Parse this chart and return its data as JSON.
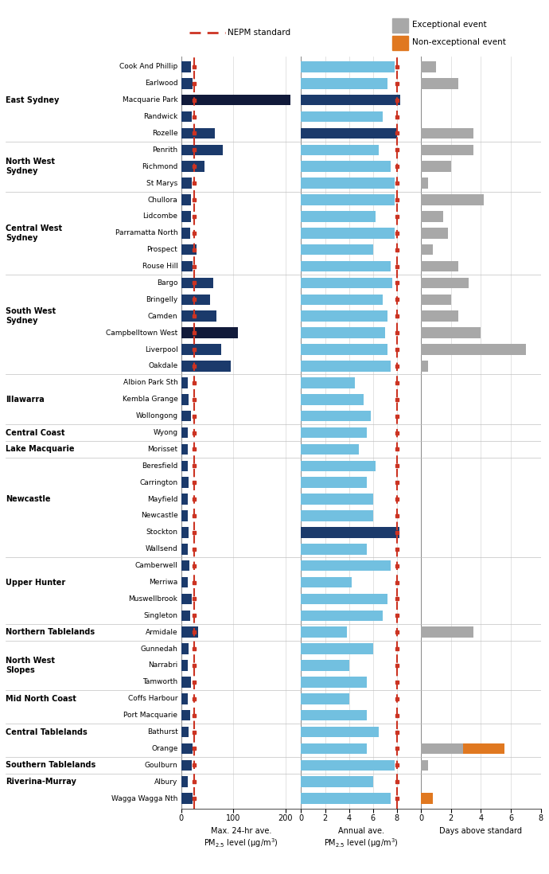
{
  "stations": [
    "Cook And Phillip",
    "Earlwood",
    "Macquarie Park",
    "Randwick",
    "Rozelle",
    "Penrith",
    "Richmond",
    "St Marys",
    "Chullora",
    "Lidcombe",
    "Parramatta North",
    "Prospect",
    "Rouse Hill",
    "Bargo",
    "Bringelly",
    "Camden",
    "Campbelltown West",
    "Liverpool",
    "Oakdale",
    "Albion Park Sth",
    "Kembla Grange",
    "Wollongong",
    "Wyong",
    "Morisset",
    "Beresfield",
    "Carrington",
    "Mayfield",
    "Newcastle",
    "Stockton",
    "Wallsend",
    "Camberwell",
    "Merriwa",
    "Muswellbrook",
    "Singleton",
    "Armidale",
    "Gunnedah",
    "Narrabri",
    "Tamworth",
    "Coffs Harbour",
    "Port Macquarie",
    "Bathurst",
    "Orange",
    "Goulburn",
    "Albury",
    "Wagga Wagga Nth"
  ],
  "region_separators": [
    4,
    7,
    12,
    18,
    21,
    22,
    23,
    29,
    33,
    34,
    37,
    39,
    41,
    42
  ],
  "regions": [
    {
      "name": "East Sydney",
      "label_row": 2
    },
    {
      "name": "North West\nSydney",
      "label_row": 6
    },
    {
      "name": "Central West\nSydney",
      "label_row": 10
    },
    {
      "name": "South West\nSydney",
      "label_row": 15
    },
    {
      "name": "Illawarra",
      "label_row": 20
    },
    {
      "name": "Central Coast",
      "label_row": 22
    },
    {
      "name": "Lake Macquarie",
      "label_row": 23
    },
    {
      "name": "Newcastle",
      "label_row": 26
    },
    {
      "name": "Upper Hunter",
      "label_row": 31
    },
    {
      "name": "Northern Tablelands",
      "label_row": 34
    },
    {
      "name": "North West\nSlopes",
      "label_row": 36
    },
    {
      "name": "Mid North Coast",
      "label_row": 38
    },
    {
      "name": "Central Tablelands",
      "label_row": 40
    },
    {
      "name": "Southern Tablelands",
      "label_row": 42
    },
    {
      "name": "Riverina-Murray",
      "label_row": 43
    }
  ],
  "max_24hr": [
    18,
    22,
    210,
    20,
    65,
    80,
    45,
    20,
    18,
    18,
    17,
    30,
    22,
    62,
    55,
    68,
    108,
    76,
    95,
    12,
    14,
    18,
    12,
    13,
    12,
    14,
    12,
    13,
    14,
    13,
    15,
    12,
    20,
    17,
    32,
    14,
    13,
    18,
    12,
    17,
    14,
    22,
    20,
    12,
    22
  ],
  "max_24hr_exceed": [
    false,
    false,
    true,
    false,
    false,
    false,
    false,
    false,
    false,
    false,
    false,
    false,
    false,
    false,
    false,
    false,
    true,
    false,
    false,
    false,
    false,
    false,
    false,
    false,
    false,
    false,
    false,
    false,
    false,
    false,
    false,
    false,
    false,
    false,
    false,
    false,
    false,
    false,
    false,
    false,
    false,
    false,
    false,
    false,
    false
  ],
  "annual_avg": [
    7.8,
    7.2,
    8.3,
    6.8,
    8.0,
    6.5,
    7.5,
    7.8,
    7.8,
    6.2,
    7.8,
    6.0,
    7.5,
    7.6,
    6.8,
    7.2,
    7.0,
    7.2,
    7.5,
    4.5,
    5.2,
    5.8,
    5.5,
    4.8,
    6.2,
    5.5,
    6.0,
    6.0,
    8.2,
    5.5,
    7.5,
    4.2,
    7.2,
    6.8,
    3.8,
    6.0,
    4.0,
    5.5,
    4.0,
    5.5,
    6.5,
    5.5,
    7.8,
    6.0,
    7.5
  ],
  "annual_exceed": [
    false,
    false,
    true,
    false,
    true,
    false,
    false,
    false,
    false,
    false,
    false,
    false,
    false,
    false,
    false,
    false,
    false,
    false,
    false,
    false,
    false,
    false,
    false,
    false,
    false,
    false,
    false,
    false,
    true,
    false,
    false,
    false,
    false,
    false,
    false,
    false,
    false,
    false,
    false,
    false,
    false,
    false,
    false,
    false,
    false
  ],
  "exceptional_days": [
    1.0,
    2.5,
    0.0,
    0.0,
    3.5,
    3.5,
    2.0,
    0.5,
    4.2,
    1.5,
    1.8,
    0.8,
    2.5,
    3.2,
    2.0,
    2.5,
    4.0,
    7.0,
    0.5,
    0.0,
    0.0,
    0.0,
    0.0,
    0.0,
    0.0,
    0.0,
    0.0,
    0.0,
    0.0,
    0.0,
    0.0,
    0.0,
    0.0,
    0.0,
    3.5,
    0.0,
    0.0,
    0.0,
    0.0,
    0.0,
    0.0,
    2.8,
    0.5,
    0.0,
    0.0
  ],
  "nonexceptional_days": [
    0.0,
    0.0,
    0.0,
    0.0,
    0.0,
    0.0,
    0.0,
    0.0,
    0.0,
    0.0,
    0.0,
    0.0,
    0.0,
    0.0,
    0.0,
    0.0,
    0.0,
    0.0,
    0.0,
    0.0,
    0.0,
    0.0,
    0.0,
    0.0,
    0.0,
    0.0,
    0.0,
    0.0,
    0.0,
    0.0,
    0.0,
    0.0,
    0.0,
    0.0,
    0.0,
    0.0,
    0.0,
    0.0,
    0.0,
    0.0,
    0.0,
    2.8,
    0.0,
    0.0,
    0.8
  ],
  "color_dark_blue": "#1b3a6b",
  "color_exceed_dark": "#111a3a",
  "color_light_blue": "#72c0e0",
  "color_exceed_light": "#1b3a6b",
  "color_med_blue": "#6e9ec0",
  "color_gray": "#a8a8a8",
  "color_orange": "#e07820",
  "color_nepm": "#cc3322",
  "max24hr_standard": 25,
  "annual_standard": 8.0,
  "bar_height": 0.65
}
